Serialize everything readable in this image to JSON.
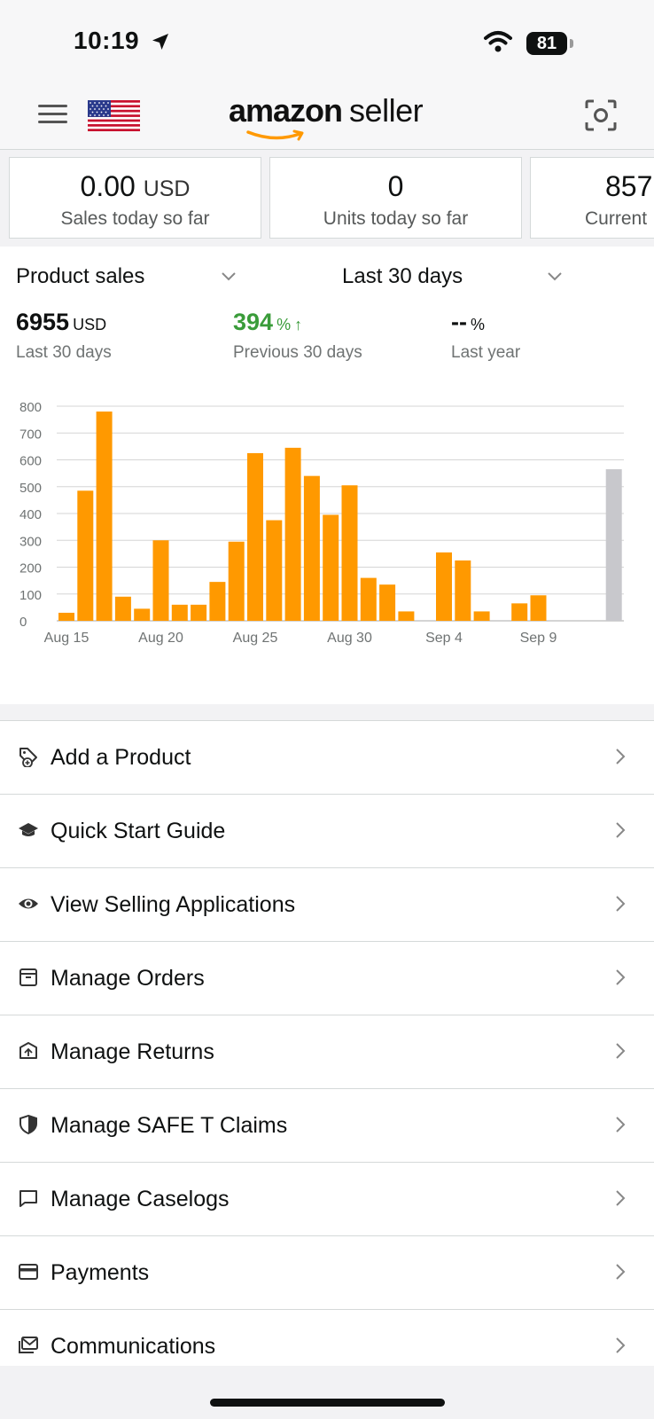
{
  "status_bar": {
    "time": "10:19",
    "battery": "81"
  },
  "header": {
    "logo_brand": "amazon",
    "logo_suffix": "seller"
  },
  "metrics": [
    {
      "value": "0.00",
      "unit": "USD",
      "label": "Sales today so far"
    },
    {
      "value": "0",
      "unit": "",
      "label": "Units today so far"
    },
    {
      "value": "857",
      "unit": "",
      "label": "Current"
    }
  ],
  "sales": {
    "metric_dropdown": "Product sales",
    "period_dropdown": "Last 30 days",
    "stats": [
      {
        "value": "6955",
        "unit": "USD",
        "label": "Last 30 days"
      },
      {
        "value": "394",
        "unit": "%",
        "arrow": "↑",
        "label": "Previous 30 days"
      },
      {
        "value": "--",
        "unit": "%",
        "label": "Last year"
      }
    ]
  },
  "chart_data": {
    "type": "bar",
    "ylim": [
      0,
      800
    ],
    "yticks": [
      0,
      100,
      200,
      300,
      400,
      500,
      600,
      700,
      800
    ],
    "x_tick_labels": [
      {
        "index": 0,
        "label": "Aug 15"
      },
      {
        "index": 5,
        "label": "Aug 20"
      },
      {
        "index": 10,
        "label": "Aug 25"
      },
      {
        "index": 15,
        "label": "Aug 30"
      },
      {
        "index": 20,
        "label": "Sep 4"
      },
      {
        "index": 25,
        "label": "Sep 9"
      }
    ],
    "bar_count": 30,
    "values": [
      30,
      485,
      780,
      90,
      45,
      300,
      60,
      60,
      145,
      295,
      625,
      375,
      645,
      540,
      395,
      505,
      160,
      135,
      35,
      0,
      255,
      225,
      35,
      0,
      65,
      95,
      0,
      0,
      0,
      565
    ],
    "colors": {
      "bar": "#ff9900",
      "last_bar": "#c8c8cc",
      "grid": "#d5d5d5",
      "tick_text": "#6f7373"
    }
  },
  "menu": [
    {
      "icon": "add-product-icon",
      "label": "Add a Product"
    },
    {
      "icon": "graduation-cap-icon",
      "label": "Quick Start Guide"
    },
    {
      "icon": "eye-icon",
      "label": "View Selling Applications"
    },
    {
      "icon": "order-box-icon",
      "label": "Manage Orders"
    },
    {
      "icon": "return-box-icon",
      "label": "Manage Returns"
    },
    {
      "icon": "shield-icon",
      "label": "Manage SAFE T Claims"
    },
    {
      "icon": "chat-bubble-icon",
      "label": "Manage Caselogs"
    },
    {
      "icon": "credit-card-icon",
      "label": "Payments"
    },
    {
      "icon": "envelope-icon",
      "label": "Communications"
    }
  ]
}
